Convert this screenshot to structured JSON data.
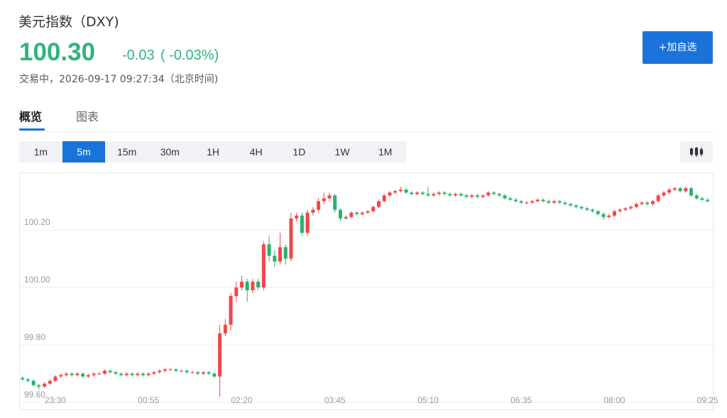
{
  "header": {
    "title": "美元指数（DXY)",
    "price": "100.30",
    "change": "-0.03",
    "change_pct": "( -0.03%)",
    "status": "交易中，2026-09-17 09:27:34（北京时间)",
    "button": "+加自选"
  },
  "tabs": [
    "概览",
    "图表"
  ],
  "intervals": [
    "1m",
    "5m",
    "15m",
    "30m",
    "1H",
    "4H",
    "1D",
    "1W",
    "1M"
  ],
  "chart_data": {
    "type": "candlestick",
    "up_color": "#f0474a",
    "down_color": "#27b36c",
    "grid": true,
    "ylim": [
      99.6,
      100.395
    ],
    "yticks": [
      {
        "value": 99.6,
        "label": "99.60"
      },
      {
        "value": 99.8,
        "label": "99.80"
      },
      {
        "value": 100,
        "label": "100.00"
      },
      {
        "value": 100.2,
        "label": "100.20"
      }
    ],
    "categories": [
      null,
      null,
      null,
      null,
      null,
      null,
      "23:30",
      null,
      null,
      null,
      null,
      null,
      null,
      null,
      null,
      null,
      null,
      null,
      null,
      null,
      null,
      null,
      null,
      "00:55",
      null,
      null,
      null,
      null,
      null,
      null,
      null,
      null,
      null,
      null,
      null,
      null,
      null,
      null,
      null,
      null,
      "02:20",
      null,
      null,
      null,
      null,
      null,
      null,
      null,
      null,
      null,
      null,
      null,
      null,
      null,
      null,
      null,
      null,
      "03:45",
      null,
      null,
      null,
      null,
      null,
      null,
      null,
      null,
      null,
      null,
      null,
      null,
      null,
      null,
      null,
      null,
      "05:10",
      null,
      null,
      null,
      null,
      null,
      null,
      null,
      null,
      null,
      null,
      null,
      null,
      null,
      null,
      null,
      null,
      "06:35",
      null,
      null,
      null,
      null,
      null,
      null,
      null,
      null,
      null,
      null,
      null,
      null,
      null,
      null,
      null,
      null,
      "08:00",
      null,
      null,
      null,
      null,
      null,
      null,
      null,
      null,
      null,
      null,
      null,
      null,
      null,
      null,
      null,
      null,
      "09:25"
    ],
    "open": [
      99.685,
      99.68,
      99.675,
      99.66,
      99.655,
      99.665,
      99.675,
      99.69,
      99.695,
      99.7,
      99.695,
      99.7,
      99.69,
      99.695,
      99.7,
      99.7,
      99.71,
      99.705,
      99.7,
      99.695,
      99.7,
      99.695,
      99.7,
      99.695,
      99.7,
      99.705,
      99.71,
      99.715,
      99.715,
      99.71,
      99.71,
      99.705,
      99.705,
      99.7,
      99.705,
      99.7,
      99.69,
      99.84,
      99.87,
      99.97,
      100.0,
      100.02,
      99.99,
      100.02,
      100.0,
      100.15,
      100.11,
      100.09,
      100.14,
      100.1,
      100.24,
      100.25,
      100.19,
      100.26,
      100.27,
      100.3,
      100.31,
      100.32,
      100.27,
      100.24,
      100.245,
      100.26,
      100.255,
      100.26,
      100.265,
      100.28,
      100.3,
      100.32,
      100.33,
      100.335,
      100.34,
      100.33,
      100.325,
      100.33,
      100.325,
      100.32,
      100.325,
      100.33,
      100.325,
      100.32,
      100.325,
      100.32,
      100.315,
      100.32,
      100.315,
      100.32,
      100.33,
      100.325,
      100.32,
      100.31,
      100.305,
      100.3,
      100.295,
      100.295,
      100.3,
      100.305,
      100.3,
      100.295,
      100.3,
      100.295,
      100.29,
      100.285,
      100.28,
      100.275,
      100.27,
      100.265,
      100.255,
      100.245,
      100.25,
      100.265,
      100.27,
      100.275,
      100.28,
      100.29,
      100.295,
      100.29,
      100.3,
      100.32,
      100.33,
      100.34,
      100.345,
      100.335,
      100.345,
      100.32,
      100.31,
      100.305
    ],
    "high": [
      99.69,
      99.685,
      99.68,
      99.665,
      99.67,
      99.68,
      99.695,
      99.7,
      99.705,
      99.705,
      99.705,
      99.705,
      99.7,
      99.705,
      99.705,
      99.715,
      99.715,
      99.71,
      99.705,
      99.705,
      99.705,
      99.705,
      99.705,
      99.705,
      99.71,
      99.715,
      99.72,
      99.72,
      99.72,
      99.715,
      99.715,
      99.71,
      99.71,
      99.71,
      99.71,
      99.705,
      99.87,
      99.89,
      99.98,
      100.02,
      100.04,
      100.03,
      100.03,
      100.03,
      100.16,
      100.18,
      100.13,
      100.19,
      100.15,
      100.26,
      100.26,
      100.26,
      100.27,
      100.28,
      100.31,
      100.33,
      100.33,
      100.325,
      100.275,
      100.25,
      100.265,
      100.265,
      100.265,
      100.27,
      100.285,
      100.305,
      100.325,
      100.335,
      100.34,
      100.35,
      100.345,
      100.335,
      100.335,
      100.335,
      100.35,
      100.33,
      100.335,
      100.335,
      100.33,
      100.33,
      100.33,
      100.325,
      100.325,
      100.325,
      100.325,
      100.335,
      100.335,
      100.33,
      100.325,
      100.315,
      100.31,
      100.305,
      100.3,
      100.305,
      100.31,
      100.31,
      100.305,
      100.305,
      100.305,
      100.3,
      100.295,
      100.29,
      100.285,
      100.28,
      100.275,
      100.27,
      100.26,
      100.255,
      100.27,
      100.275,
      100.28,
      100.285,
      100.295,
      100.3,
      100.3,
      100.305,
      100.325,
      100.335,
      100.345,
      100.35,
      100.35,
      100.35,
      100.35,
      100.325,
      100.315,
      100.31
    ],
    "low": [
      99.675,
      99.67,
      99.655,
      99.645,
      99.65,
      99.66,
      99.67,
      99.685,
      99.69,
      99.69,
      99.69,
      99.685,
      99.685,
      99.69,
      99.695,
      99.695,
      99.7,
      99.695,
      99.69,
      99.69,
      99.69,
      99.69,
      99.69,
      99.69,
      99.695,
      99.7,
      99.705,
      99.71,
      99.705,
      99.705,
      99.7,
      99.7,
      99.695,
      99.695,
      99.695,
      99.685,
      99.62,
      99.83,
      99.85,
      99.95,
      99.99,
      99.95,
      99.98,
      99.99,
      99.99,
      100.09,
      100.07,
      100.08,
      100.08,
      100.09,
      100.23,
      100.18,
      100.18,
      100.25,
      100.26,
      100.29,
      100.3,
      100.26,
      100.23,
      100.235,
      100.24,
      100.25,
      100.25,
      100.255,
      100.26,
      100.275,
      100.295,
      100.315,
      100.325,
      100.33,
      100.325,
      100.32,
      100.32,
      100.32,
      100.315,
      100.315,
      100.32,
      100.32,
      100.315,
      100.315,
      100.315,
      100.31,
      100.31,
      100.31,
      100.31,
      100.315,
      100.32,
      100.315,
      100.305,
      100.3,
      100.295,
      100.29,
      100.29,
      100.29,
      100.295,
      100.295,
      100.29,
      100.29,
      100.29,
      100.285,
      100.28,
      100.275,
      100.27,
      100.265,
      100.26,
      100.25,
      100.235,
      100.24,
      100.245,
      100.26,
      100.265,
      100.27,
      100.275,
      100.285,
      100.285,
      100.285,
      100.295,
      100.315,
      100.325,
      100.335,
      100.33,
      100.33,
      100.315,
      100.305,
      100.3,
      100.295
    ],
    "close": [
      99.68,
      99.675,
      99.66,
      99.655,
      99.665,
      99.675,
      99.69,
      99.695,
      99.7,
      99.695,
      99.7,
      99.69,
      99.695,
      99.7,
      99.7,
      99.71,
      99.705,
      99.7,
      99.695,
      99.7,
      99.695,
      99.7,
      99.695,
      99.7,
      99.705,
      99.71,
      99.715,
      99.715,
      99.71,
      99.71,
      99.705,
      99.705,
      99.7,
      99.705,
      99.7,
      99.69,
      99.84,
      99.87,
      99.97,
      100.0,
      100.02,
      99.99,
      100.02,
      100.0,
      100.15,
      100.11,
      100.09,
      100.14,
      100.1,
      100.24,
      100.25,
      100.19,
      100.26,
      100.27,
      100.3,
      100.31,
      100.32,
      100.27,
      100.24,
      100.245,
      100.26,
      100.255,
      100.26,
      100.265,
      100.28,
      100.3,
      100.32,
      100.33,
      100.335,
      100.34,
      100.33,
      100.325,
      100.33,
      100.325,
      100.32,
      100.325,
      100.33,
      100.325,
      100.32,
      100.325,
      100.32,
      100.315,
      100.32,
      100.315,
      100.32,
      100.33,
      100.325,
      100.32,
      100.31,
      100.305,
      100.3,
      100.295,
      100.295,
      100.3,
      100.305,
      100.3,
      100.295,
      100.3,
      100.295,
      100.29,
      100.285,
      100.28,
      100.275,
      100.27,
      100.265,
      100.255,
      100.245,
      100.25,
      100.265,
      100.27,
      100.275,
      100.28,
      100.29,
      100.295,
      100.29,
      100.3,
      100.32,
      100.33,
      100.34,
      100.345,
      100.335,
      100.345,
      100.32,
      100.31,
      100.305,
      100.3
    ]
  }
}
